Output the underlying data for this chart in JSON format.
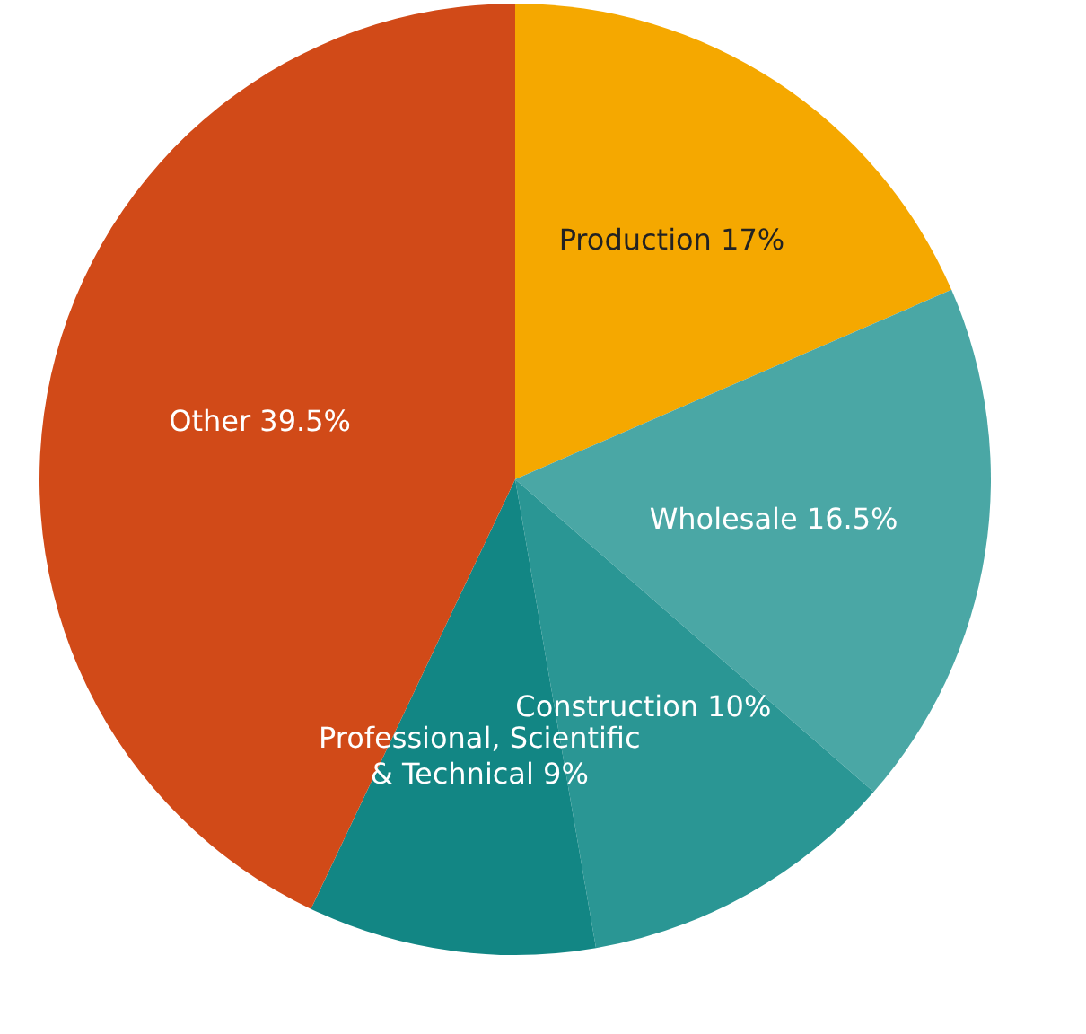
{
  "chart_data": {
    "type": "pie",
    "categories": [
      "Production",
      "Wholesale",
      "Construction",
      "Professional, Scientific & Technical",
      "Other"
    ],
    "values": [
      17,
      16.5,
      10,
      9,
      39.5
    ],
    "value_labels": [
      "17%",
      "16.5%",
      "10%",
      "9%",
      "39.5%"
    ],
    "colors": [
      "#f5a800",
      "#4aa7a5",
      "#2a9694",
      "#128684",
      "#d14a18"
    ]
  }
}
